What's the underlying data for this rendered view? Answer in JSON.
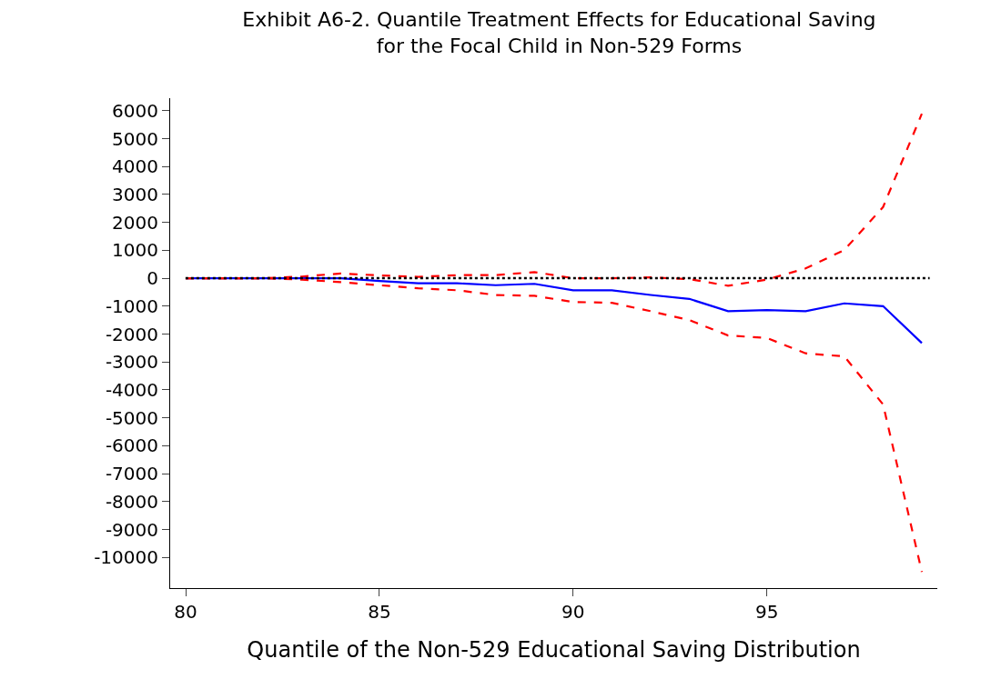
{
  "chart_data": {
    "type": "line",
    "title": "Exhibit A6-2. Quantile Treatment Effects for Educational Saving\nfor the Focal Child in Non-529 Forms",
    "xlabel": "Quantile of the Non-529 Educational Saving Distribution",
    "x": [
      80,
      81,
      82,
      83,
      84,
      85,
      86,
      87,
      88,
      89,
      90,
      91,
      92,
      93,
      94,
      95,
      96,
      97,
      98,
      99
    ],
    "series": [
      {
        "color": "#0000ff",
        "line_style": "solid",
        "values": [
          0,
          0,
          0,
          0,
          0,
          -100,
          -180,
          -180,
          -250,
          -200,
          -430,
          -430,
          -600,
          -740,
          -1180,
          -1140,
          -1180,
          -900,
          -1000,
          -2320
        ]
      },
      {
        "color": "#ff0000",
        "line_style": "dashed",
        "values": [
          0,
          0,
          0,
          60,
          170,
          100,
          50,
          110,
          110,
          220,
          0,
          0,
          30,
          -30,
          -270,
          -50,
          350,
          1010,
          2550,
          5890
        ]
      },
      {
        "color": "#ff0000",
        "line_style": "dashed",
        "values": [
          0,
          0,
          0,
          -50,
          -140,
          -250,
          -360,
          -430,
          -600,
          -630,
          -850,
          -880,
          -1180,
          -1500,
          -2050,
          -2140,
          -2690,
          -2800,
          -4520,
          -10520
        ]
      }
    ],
    "xlim": [
      79.6,
      99.4
    ],
    "xticks": [
      80,
      85,
      90,
      95
    ],
    "ylim": [
      -11100,
      6450
    ],
    "yticks": [
      -10000,
      -9000,
      -8000,
      -7000,
      -6000,
      -5000,
      -4000,
      -3000,
      -2000,
      -1000,
      0,
      1000,
      2000,
      3000,
      4000,
      5000,
      6000
    ],
    "ref_lines": [
      {
        "axis": "y",
        "value": 0,
        "color": "#000000",
        "line_style": "dotted"
      }
    ],
    "marker": "none"
  }
}
